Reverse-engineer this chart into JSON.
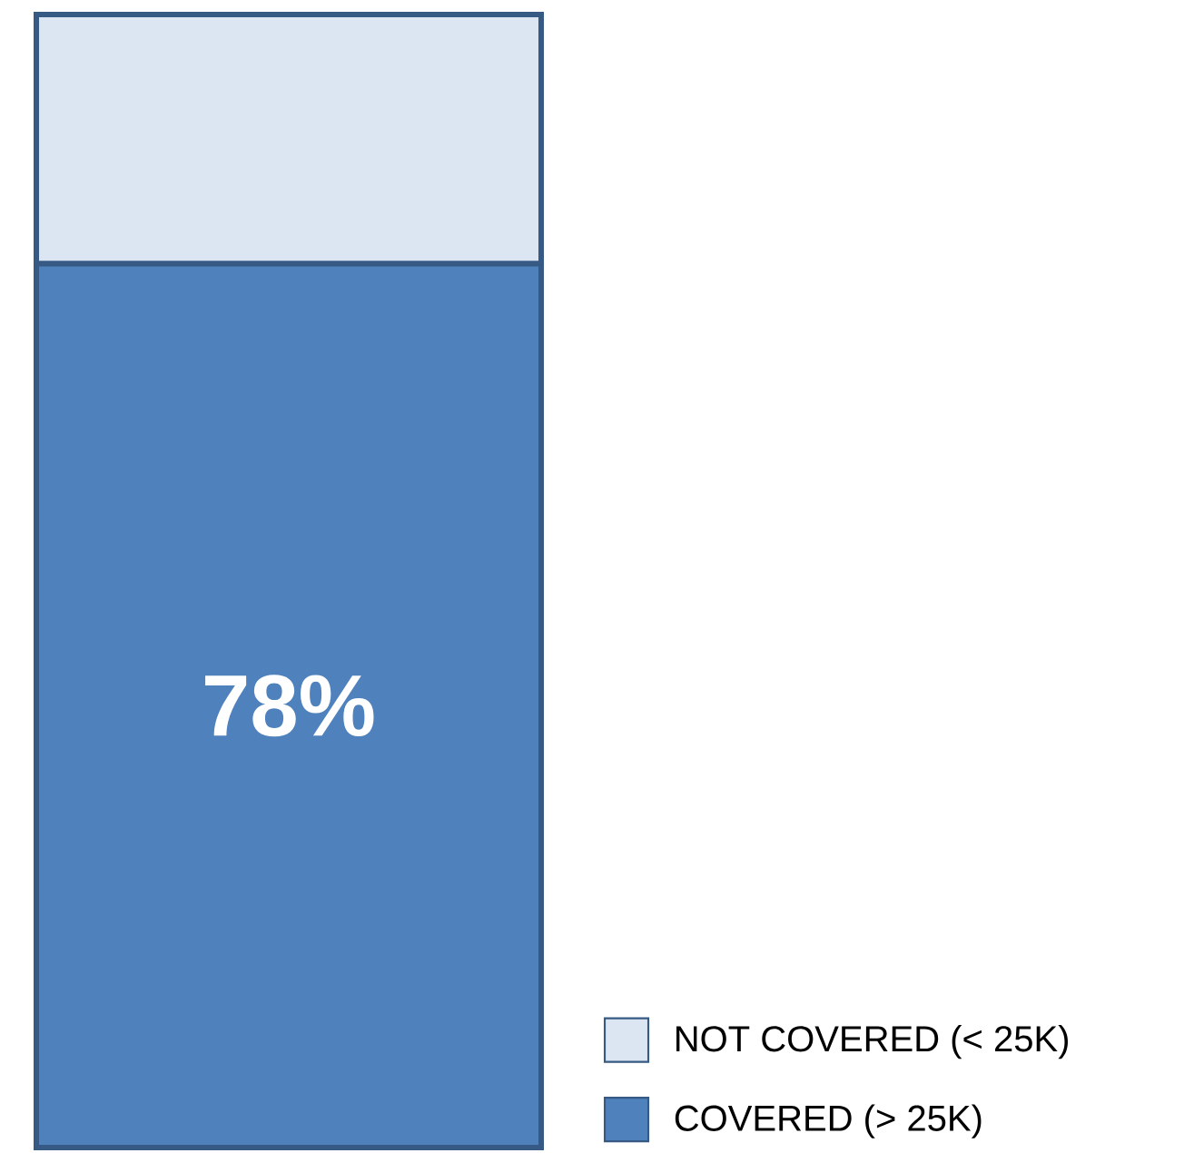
{
  "chart_data": {
    "type": "bar",
    "stacked": true,
    "legend": "bottom right",
    "categories": [
      null
    ],
    "series": [
      {
        "name": "COVERED (> 25K)",
        "color": "#4f81bd",
        "values": [
          78
        ],
        "value_labels": [
          "78%"
        ]
      },
      {
        "name": "NOT COVERED (< 25K)",
        "color": "#dce6f2",
        "values": [
          22
        ]
      }
    ]
  }
}
